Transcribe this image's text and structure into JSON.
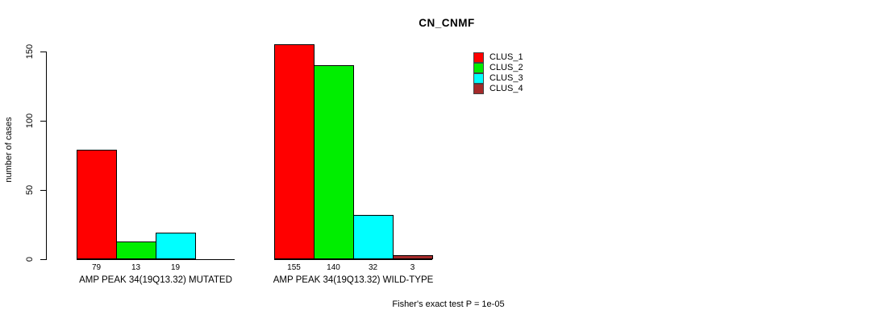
{
  "chart_data": {
    "type": "bar",
    "title": "CN_CNMF",
    "ylabel": "number of cases",
    "xlabel": "",
    "ylim": [
      0,
      150
    ],
    "yticks": [
      0,
      50,
      100,
      150
    ],
    "grid": false,
    "legend_position": "top-right",
    "legend": [
      {
        "label": "CLUS_1",
        "color": "#ff0000"
      },
      {
        "label": "CLUS_2",
        "color": "#00ee00"
      },
      {
        "label": "CLUS_3",
        "color": "#00ffff"
      },
      {
        "label": "CLUS_4",
        "color": "#a52a2a"
      }
    ],
    "groups": [
      {
        "label": "AMP PEAK 34(19Q13.32) MUTATED",
        "values": [
          79,
          13,
          19
        ],
        "slots": 4
      },
      {
        "label": "AMP PEAK 34(19Q13.32) WILD-TYPE",
        "values": [
          155,
          140,
          32,
          3
        ],
        "slots": 4
      }
    ],
    "footnote": "Fisher's exact test P = 1e-05"
  }
}
